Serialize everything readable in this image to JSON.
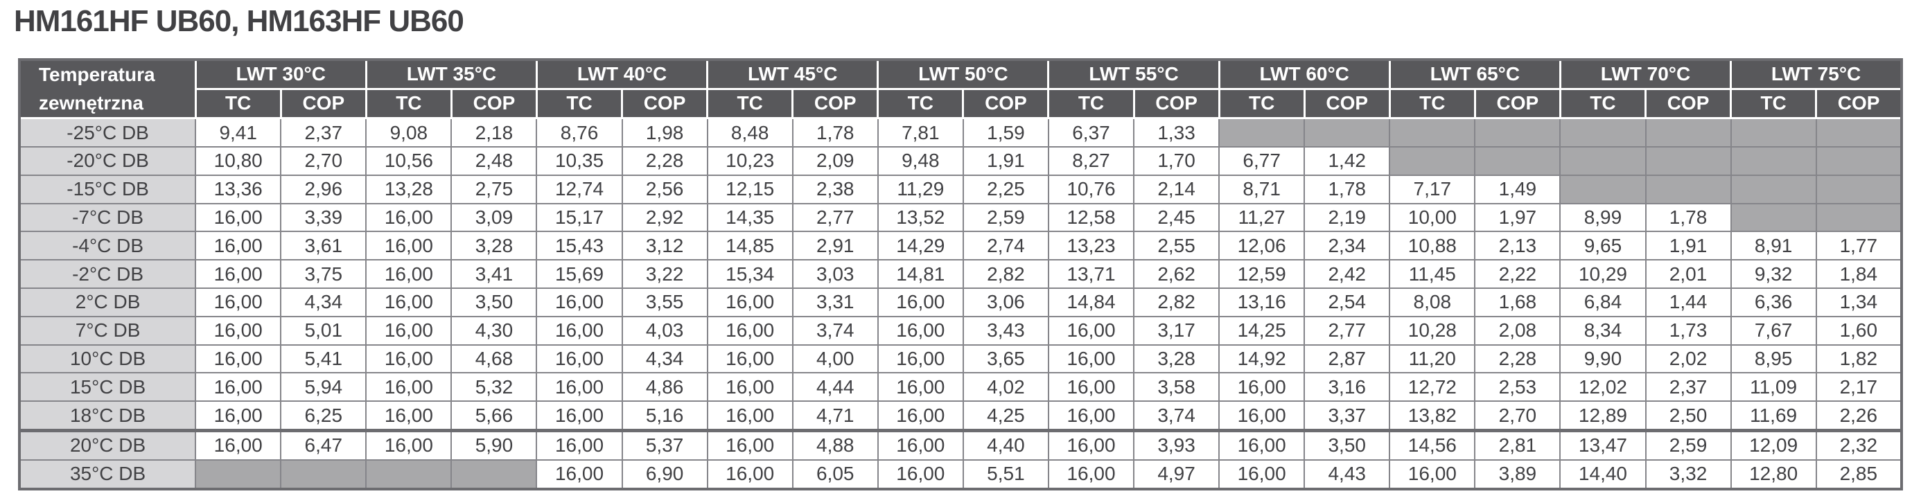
{
  "title": "HM161HF UB60, HM163HF UB60",
  "colors": {
    "header_bg": "#58585b",
    "header_text": "#ffffff",
    "row_label_bg": "#d6d6d8",
    "empty_cell_bg": "#a8a8aa",
    "cell_border": "#85858a",
    "outer_border": "#6c6c70",
    "text": "#414144"
  },
  "table": {
    "corner_header": {
      "line1": "Temperatura",
      "line2": "zewnętrzna"
    },
    "column_groups": [
      "LWT 30°C",
      "LWT 35°C",
      "LWT 40°C",
      "LWT 45°C",
      "LWT 50°C",
      "LWT 55°C",
      "LWT 60°C",
      "LWT 65°C",
      "LWT 70°C",
      "LWT 75°C"
    ],
    "sub_columns": [
      "TC",
      "COP"
    ],
    "rows": [
      {
        "label": "-25°C DB",
        "thick_top": false,
        "values": [
          "9,41",
          "2,37",
          "9,08",
          "2,18",
          "8,76",
          "1,98",
          "8,48",
          "1,78",
          "7,81",
          "1,59",
          "6,37",
          "1,33",
          null,
          null,
          null,
          null,
          null,
          null,
          null,
          null
        ]
      },
      {
        "label": "-20°C DB",
        "thick_top": false,
        "values": [
          "10,80",
          "2,70",
          "10,56",
          "2,48",
          "10,35",
          "2,28",
          "10,23",
          "2,09",
          "9,48",
          "1,91",
          "8,27",
          "1,70",
          "6,77",
          "1,42",
          null,
          null,
          null,
          null,
          null,
          null
        ]
      },
      {
        "label": "-15°C DB",
        "thick_top": false,
        "values": [
          "13,36",
          "2,96",
          "13,28",
          "2,75",
          "12,74",
          "2,56",
          "12,15",
          "2,38",
          "11,29",
          "2,25",
          "10,76",
          "2,14",
          "8,71",
          "1,78",
          "7,17",
          "1,49",
          null,
          null,
          null,
          null
        ]
      },
      {
        "label": "-7°C DB",
        "thick_top": false,
        "values": [
          "16,00",
          "3,39",
          "16,00",
          "3,09",
          "15,17",
          "2,92",
          "14,35",
          "2,77",
          "13,52",
          "2,59",
          "12,58",
          "2,45",
          "11,27",
          "2,19",
          "10,00",
          "1,97",
          "8,99",
          "1,78",
          null,
          null
        ]
      },
      {
        "label": "-4°C DB",
        "thick_top": false,
        "values": [
          "16,00",
          "3,61",
          "16,00",
          "3,28",
          "15,43",
          "3,12",
          "14,85",
          "2,91",
          "14,29",
          "2,74",
          "13,23",
          "2,55",
          "12,06",
          "2,34",
          "10,88",
          "2,13",
          "9,65",
          "1,91",
          "8,91",
          "1,77"
        ]
      },
      {
        "label": "-2°C DB",
        "thick_top": false,
        "values": [
          "16,00",
          "3,75",
          "16,00",
          "3,41",
          "15,69",
          "3,22",
          "15,34",
          "3,03",
          "14,81",
          "2,82",
          "13,71",
          "2,62",
          "12,59",
          "2,42",
          "11,45",
          "2,22",
          "10,29",
          "2,01",
          "9,32",
          "1,84"
        ]
      },
      {
        "label": "2°C DB",
        "thick_top": false,
        "values": [
          "16,00",
          "4,34",
          "16,00",
          "3,50",
          "16,00",
          "3,55",
          "16,00",
          "3,31",
          "16,00",
          "3,06",
          "14,84",
          "2,82",
          "13,16",
          "2,54",
          "8,08",
          "1,68",
          "6,84",
          "1,44",
          "6,36",
          "1,34"
        ]
      },
      {
        "label": "7°C DB",
        "thick_top": false,
        "values": [
          "16,00",
          "5,01",
          "16,00",
          "4,30",
          "16,00",
          "4,03",
          "16,00",
          "3,74",
          "16,00",
          "3,43",
          "16,00",
          "3,17",
          "14,25",
          "2,77",
          "10,28",
          "2,08",
          "8,34",
          "1,73",
          "7,67",
          "1,60"
        ]
      },
      {
        "label": "10°C DB",
        "thick_top": false,
        "values": [
          "16,00",
          "5,41",
          "16,00",
          "4,68",
          "16,00",
          "4,34",
          "16,00",
          "4,00",
          "16,00",
          "3,65",
          "16,00",
          "3,28",
          "14,92",
          "2,87",
          "11,20",
          "2,28",
          "9,90",
          "2,02",
          "8,95",
          "1,82"
        ]
      },
      {
        "label": "15°C DB",
        "thick_top": false,
        "values": [
          "16,00",
          "5,94",
          "16,00",
          "5,32",
          "16,00",
          "4,86",
          "16,00",
          "4,44",
          "16,00",
          "4,02",
          "16,00",
          "3,58",
          "16,00",
          "3,16",
          "12,72",
          "2,53",
          "12,02",
          "2,37",
          "11,09",
          "2,17"
        ]
      },
      {
        "label": "18°C DB",
        "thick_top": false,
        "values": [
          "16,00",
          "6,25",
          "16,00",
          "5,66",
          "16,00",
          "5,16",
          "16,00",
          "4,71",
          "16,00",
          "4,25",
          "16,00",
          "3,74",
          "16,00",
          "3,37",
          "13,82",
          "2,70",
          "12,89",
          "2,50",
          "11,69",
          "2,26"
        ]
      },
      {
        "label": "20°C DB",
        "thick_top": true,
        "values": [
          "16,00",
          "6,47",
          "16,00",
          "5,90",
          "16,00",
          "5,37",
          "16,00",
          "4,88",
          "16,00",
          "4,40",
          "16,00",
          "3,93",
          "16,00",
          "3,50",
          "14,56",
          "2,81",
          "13,47",
          "2,59",
          "12,09",
          "2,32"
        ]
      },
      {
        "label": "35°C DB",
        "thick_top": false,
        "values": [
          null,
          null,
          null,
          null,
          "16,00",
          "6,90",
          "16,00",
          "6,05",
          "16,00",
          "5,51",
          "16,00",
          "4,97",
          "16,00",
          "4,43",
          "16,00",
          "3,89",
          "14,40",
          "3,32",
          "12,80",
          "2,85"
        ]
      }
    ]
  }
}
